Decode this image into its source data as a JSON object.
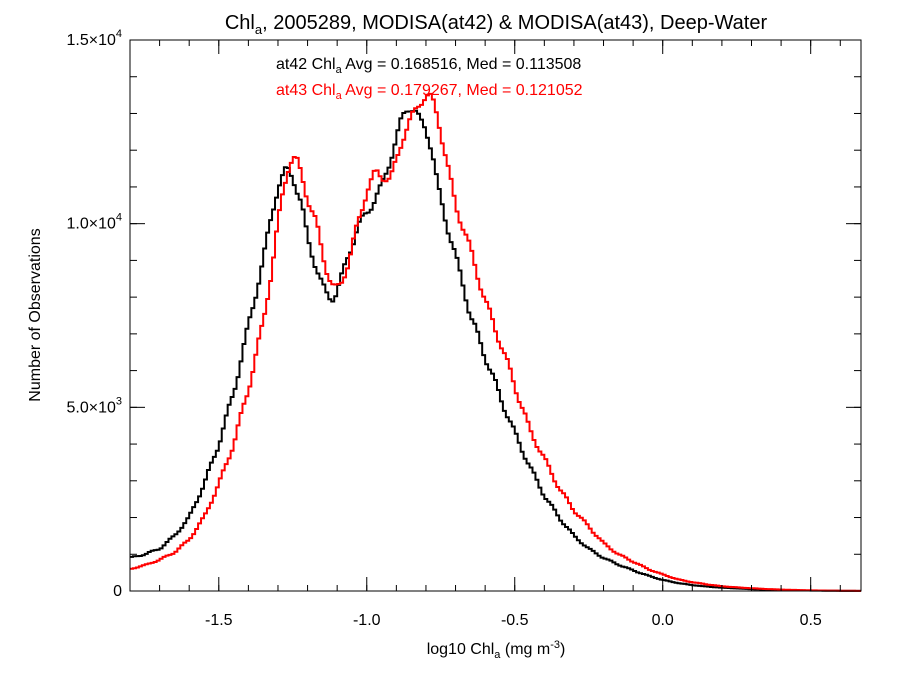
{
  "chart_data": {
    "type": "line",
    "step": true,
    "title": {
      "main": "Chl",
      "sub": "a",
      "rest": ", 2005289, MODISA(at42) & MODISA(at43), Deep-Water"
    },
    "xlabel": {
      "main": "log10 Chl",
      "sub": "a",
      "rest": " (mg m",
      "sup": "-3",
      "close": ")"
    },
    "ylabel": "Number of Observations",
    "xlim": [
      -1.8,
      0.67
    ],
    "ylim": [
      0,
      15000
    ],
    "x_ticks": [
      {
        "value": -1.5,
        "label": "-1.5"
      },
      {
        "value": -1.0,
        "label": "-1.0"
      },
      {
        "value": -0.5,
        "label": "-0.5"
      },
      {
        "value": 0.0,
        "label": "0.0"
      },
      {
        "value": 0.5,
        "label": "0.5"
      }
    ],
    "x_minor_step": 0.1,
    "y_ticks": [
      {
        "value": 0,
        "mant": "0",
        "exp": ""
      },
      {
        "value": 5000,
        "mant": "5.0×10",
        "exp": "3"
      },
      {
        "value": 10000,
        "mant": "1.0×10",
        "exp": "4"
      },
      {
        "value": 15000,
        "mant": "1.5×10",
        "exp": "4"
      }
    ],
    "y_minor_step": 1000,
    "bin_width": 0.01,
    "grid": false,
    "annotations": [
      {
        "parts": [
          "at42 Chl",
          "a",
          " Avg = 0.168516, Med = 0.113508"
        ],
        "color": "#000000"
      },
      {
        "parts": [
          "at43 Chl",
          "a",
          " Avg = 0.179267, Med = 0.121052"
        ],
        "color": "#ff0000"
      }
    ],
    "series": [
      {
        "color": "#000000",
        "points": [
          [
            -1.8,
            900
          ],
          [
            -1.75,
            1000
          ],
          [
            -1.7,
            1150
          ],
          [
            -1.65,
            1500
          ],
          [
            -1.6,
            2000
          ],
          [
            -1.55,
            2900
          ],
          [
            -1.5,
            4000
          ],
          [
            -1.45,
            5400
          ],
          [
            -1.4,
            7200
          ],
          [
            -1.35,
            9000
          ],
          [
            -1.32,
            10300
          ],
          [
            -1.3,
            11000
          ],
          [
            -1.27,
            11500
          ],
          [
            -1.25,
            11300
          ],
          [
            -1.22,
            10500
          ],
          [
            -1.2,
            9600
          ],
          [
            -1.17,
            8800
          ],
          [
            -1.15,
            8300
          ],
          [
            -1.13,
            8000
          ],
          [
            -1.11,
            8000
          ],
          [
            -1.09,
            8400
          ],
          [
            -1.06,
            9200
          ],
          [
            -1.03,
            9900
          ],
          [
            -1.0,
            10300
          ],
          [
            -0.97,
            10700
          ],
          [
            -0.95,
            11000
          ],
          [
            -0.93,
            11500
          ],
          [
            -0.9,
            12300
          ],
          [
            -0.88,
            12900
          ],
          [
            -0.86,
            13200
          ],
          [
            -0.84,
            13100
          ],
          [
            -0.82,
            12800
          ],
          [
            -0.8,
            12600
          ],
          [
            -0.78,
            12000
          ],
          [
            -0.76,
            11000
          ],
          [
            -0.73,
            10000
          ],
          [
            -0.7,
            9100
          ],
          [
            -0.67,
            8200
          ],
          [
            -0.65,
            7500
          ],
          [
            -0.6,
            6400
          ],
          [
            -0.55,
            5300
          ],
          [
            -0.5,
            4300
          ],
          [
            -0.45,
            3400
          ],
          [
            -0.4,
            2600
          ],
          [
            -0.35,
            2000
          ],
          [
            -0.3,
            1500
          ],
          [
            -0.25,
            1150
          ],
          [
            -0.2,
            900
          ],
          [
            -0.15,
            720
          ],
          [
            -0.1,
            560
          ],
          [
            -0.05,
            420
          ],
          [
            0.0,
            300
          ],
          [
            0.05,
            220
          ],
          [
            0.1,
            160
          ],
          [
            0.15,
            120
          ],
          [
            0.2,
            90
          ],
          [
            0.25,
            70
          ],
          [
            0.3,
            50
          ],
          [
            0.35,
            35
          ],
          [
            0.4,
            25
          ],
          [
            0.45,
            18
          ],
          [
            0.5,
            12
          ],
          [
            0.55,
            8
          ],
          [
            0.6,
            5
          ],
          [
            0.67,
            3
          ]
        ]
      },
      {
        "color": "#ff0000",
        "points": [
          [
            -1.8,
            600
          ],
          [
            -1.75,
            700
          ],
          [
            -1.7,
            850
          ],
          [
            -1.65,
            1050
          ],
          [
            -1.6,
            1400
          ],
          [
            -1.55,
            2000
          ],
          [
            -1.5,
            2900
          ],
          [
            -1.45,
            4000
          ],
          [
            -1.4,
            5500
          ],
          [
            -1.35,
            7300
          ],
          [
            -1.32,
            8800
          ],
          [
            -1.3,
            10000
          ],
          [
            -1.28,
            11000
          ],
          [
            -1.26,
            11700
          ],
          [
            -1.24,
            11800
          ],
          [
            -1.22,
            11300
          ],
          [
            -1.2,
            10700
          ],
          [
            -1.17,
            10000
          ],
          [
            -1.15,
            9200
          ],
          [
            -1.13,
            8600
          ],
          [
            -1.11,
            8200
          ],
          [
            -1.09,
            8300
          ],
          [
            -1.06,
            9000
          ],
          [
            -1.03,
            10000
          ],
          [
            -1.0,
            10900
          ],
          [
            -0.97,
            11400
          ],
          [
            -0.95,
            11300
          ],
          [
            -0.92,
            11200
          ],
          [
            -0.9,
            11700
          ],
          [
            -0.88,
            12300
          ],
          [
            -0.86,
            12700
          ],
          [
            -0.84,
            13000
          ],
          [
            -0.82,
            13300
          ],
          [
            -0.8,
            13500
          ],
          [
            -0.78,
            13400
          ],
          [
            -0.76,
            12900
          ],
          [
            -0.74,
            12100
          ],
          [
            -0.72,
            11300
          ],
          [
            -0.7,
            10500
          ],
          [
            -0.67,
            9800
          ],
          [
            -0.65,
            9300
          ],
          [
            -0.6,
            7900
          ],
          [
            -0.55,
            6800
          ],
          [
            -0.5,
            5600
          ],
          [
            -0.45,
            4400
          ],
          [
            -0.4,
            3600
          ],
          [
            -0.35,
            2800
          ],
          [
            -0.3,
            2200
          ],
          [
            -0.25,
            1750
          ],
          [
            -0.2,
            1300
          ],
          [
            -0.15,
            1000
          ],
          [
            -0.1,
            800
          ],
          [
            -0.05,
            600
          ],
          [
            0.0,
            450
          ],
          [
            0.05,
            320
          ],
          [
            0.1,
            240
          ],
          [
            0.15,
            180
          ],
          [
            0.2,
            130
          ],
          [
            0.25,
            100
          ],
          [
            0.3,
            75
          ],
          [
            0.35,
            55
          ],
          [
            0.4,
            40
          ],
          [
            0.45,
            28
          ],
          [
            0.5,
            18
          ],
          [
            0.55,
            12
          ],
          [
            0.6,
            8
          ],
          [
            0.67,
            4
          ]
        ]
      }
    ]
  }
}
